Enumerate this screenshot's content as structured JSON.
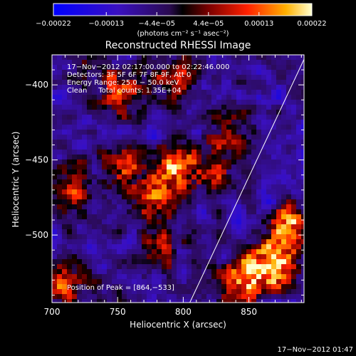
{
  "chart_data": {
    "type": "heatmap",
    "title": "Reconstructed RHESSI Image",
    "xlabel": "Heliocentric X (arcsec)",
    "ylabel": "Heliocentric Y (arcsec)",
    "xlim": [
      700,
      892
    ],
    "ylim": [
      -545,
      -380
    ],
    "xticks": [
      700,
      750,
      800,
      850
    ],
    "xtick_labels": [
      "700",
      "750",
      "800",
      "850"
    ],
    "yticks": [
      -500,
      -450,
      -400
    ],
    "ytick_labels": [
      "−500",
      "−450",
      "−400"
    ],
    "colorbar": {
      "min": -0.00022,
      "max": 0.00022,
      "ticks": [
        -0.00022,
        -0.00013,
        -4.4e-05,
        4.4e-05,
        0.00013,
        0.00022
      ],
      "tick_labels": [
        "−0.00022",
        "−0.00013",
        "−4.4e−05",
        "4.4e−05",
        "0.00013",
        "0.00022"
      ],
      "units_label": "(photons cm⁻² s⁻¹ asec⁻²)"
    },
    "annotations": [
      "17−Nov−2012 02:17:00.000 to 02:22:46.000",
      "Detectors: 3F 5F 6F 7F 8F 9F, Att 0",
      "Energy Range: 25.0 − 50.0 keV",
      "Clean     Total counts: 1.35E+04",
      "Position of Peak = [864,−533]"
    ],
    "peak": {
      "x": 864,
      "y": -533
    },
    "limb": [
      [
        805,
        -545
      ],
      [
        892,
        -383
      ]
    ],
    "hot_regions": [
      {
        "x": 868,
        "y": -520,
        "level": 1.0
      },
      {
        "x": 880,
        "y": -495,
        "level": 0.85
      },
      {
        "x": 845,
        "y": -530,
        "level": 0.8
      },
      {
        "x": 793,
        "y": -455,
        "level": 0.7
      },
      {
        "x": 778,
        "y": -478,
        "level": 0.55
      },
      {
        "x": 820,
        "y": -455,
        "level": 0.55
      },
      {
        "x": 755,
        "y": -455,
        "level": 0.6
      },
      {
        "x": 712,
        "y": -470,
        "level": 0.55
      },
      {
        "x": 755,
        "y": -407,
        "level": 0.5
      },
      {
        "x": 735,
        "y": -395,
        "level": 0.4
      },
      {
        "x": 795,
        "y": -395,
        "level": 0.45
      },
      {
        "x": 708,
        "y": -532,
        "level": 0.55
      },
      {
        "x": 785,
        "y": -510,
        "level": 0.4
      },
      {
        "x": 838,
        "y": -430,
        "level": 0.35
      }
    ]
  },
  "footer": {
    "timestamp": "17−Nov−2012 01:47"
  }
}
